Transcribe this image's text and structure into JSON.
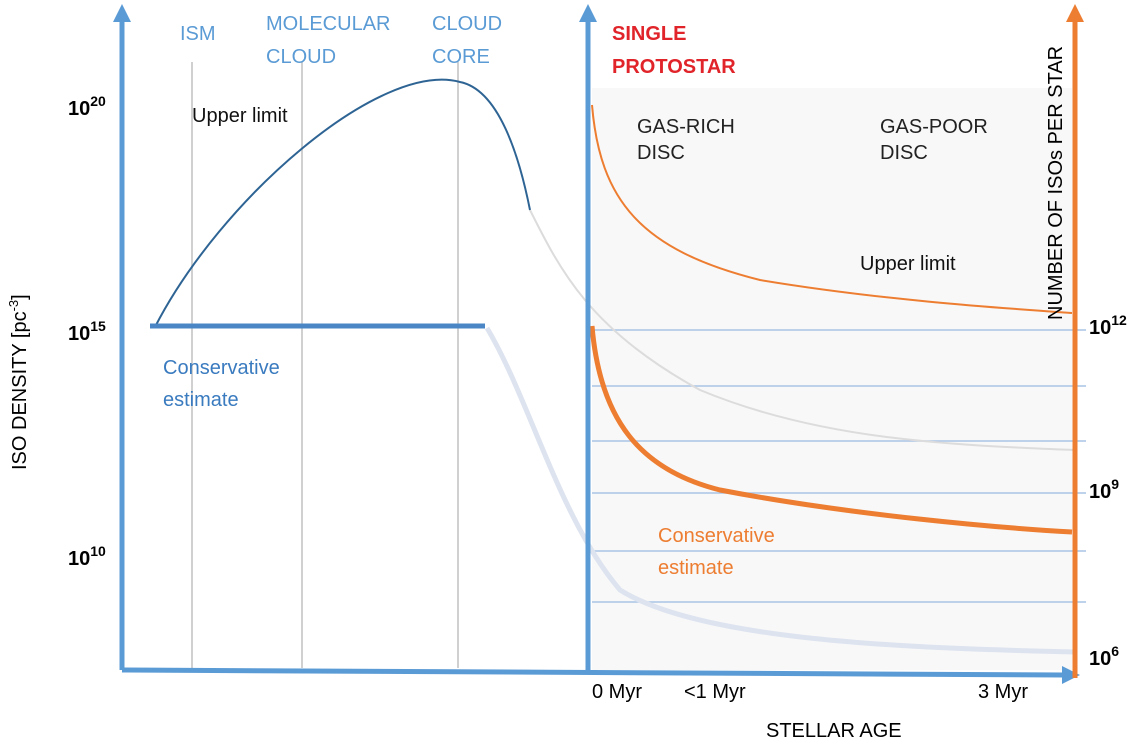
{
  "stages": [
    {
      "lines": [
        "ISM"
      ]
    },
    {
      "lines": [
        "MOLECULAR",
        "CLOUD"
      ]
    },
    {
      "lines": [
        "CLOUD",
        "CORE"
      ]
    }
  ],
  "protostar": {
    "lines": [
      "SINGLE",
      "PROTOSTAR"
    ]
  },
  "left_axis": {
    "label": {
      "text": "ISO DENSITY [pc",
      "exp": "-3",
      "tail": "]"
    },
    "ticks": [
      {
        "base": "10",
        "exp": "20"
      },
      {
        "base": "10",
        "exp": "15"
      },
      {
        "base": "10",
        "exp": "10"
      }
    ]
  },
  "right_axis": {
    "label": "NUMBER OF  ISOs PER STAR",
    "ticks": [
      {
        "base": "10",
        "exp": "12"
      },
      {
        "base": "10",
        "exp": "9"
      },
      {
        "base": "10",
        "exp": "6"
      }
    ]
  },
  "x_axis": {
    "label": "STELLAR AGE",
    "ticks": [
      "0 Myr",
      "<1 Myr",
      "3 Myr"
    ]
  },
  "annotations": {
    "cloud_upper": {
      "lines": [
        "Upper limit"
      ]
    },
    "cloud_conservative": {
      "lines": [
        "Conservative",
        "estimate"
      ]
    },
    "gas_rich": {
      "lines": [
        "GAS-RICH",
        "DISC"
      ]
    },
    "gas_poor": {
      "lines": [
        "GAS-POOR",
        "DISC"
      ]
    },
    "disc_upper": {
      "lines": [
        "Upper limit"
      ]
    },
    "disc_conservative": {
      "lines": [
        "Conservative",
        "estimate"
      ]
    }
  }
}
